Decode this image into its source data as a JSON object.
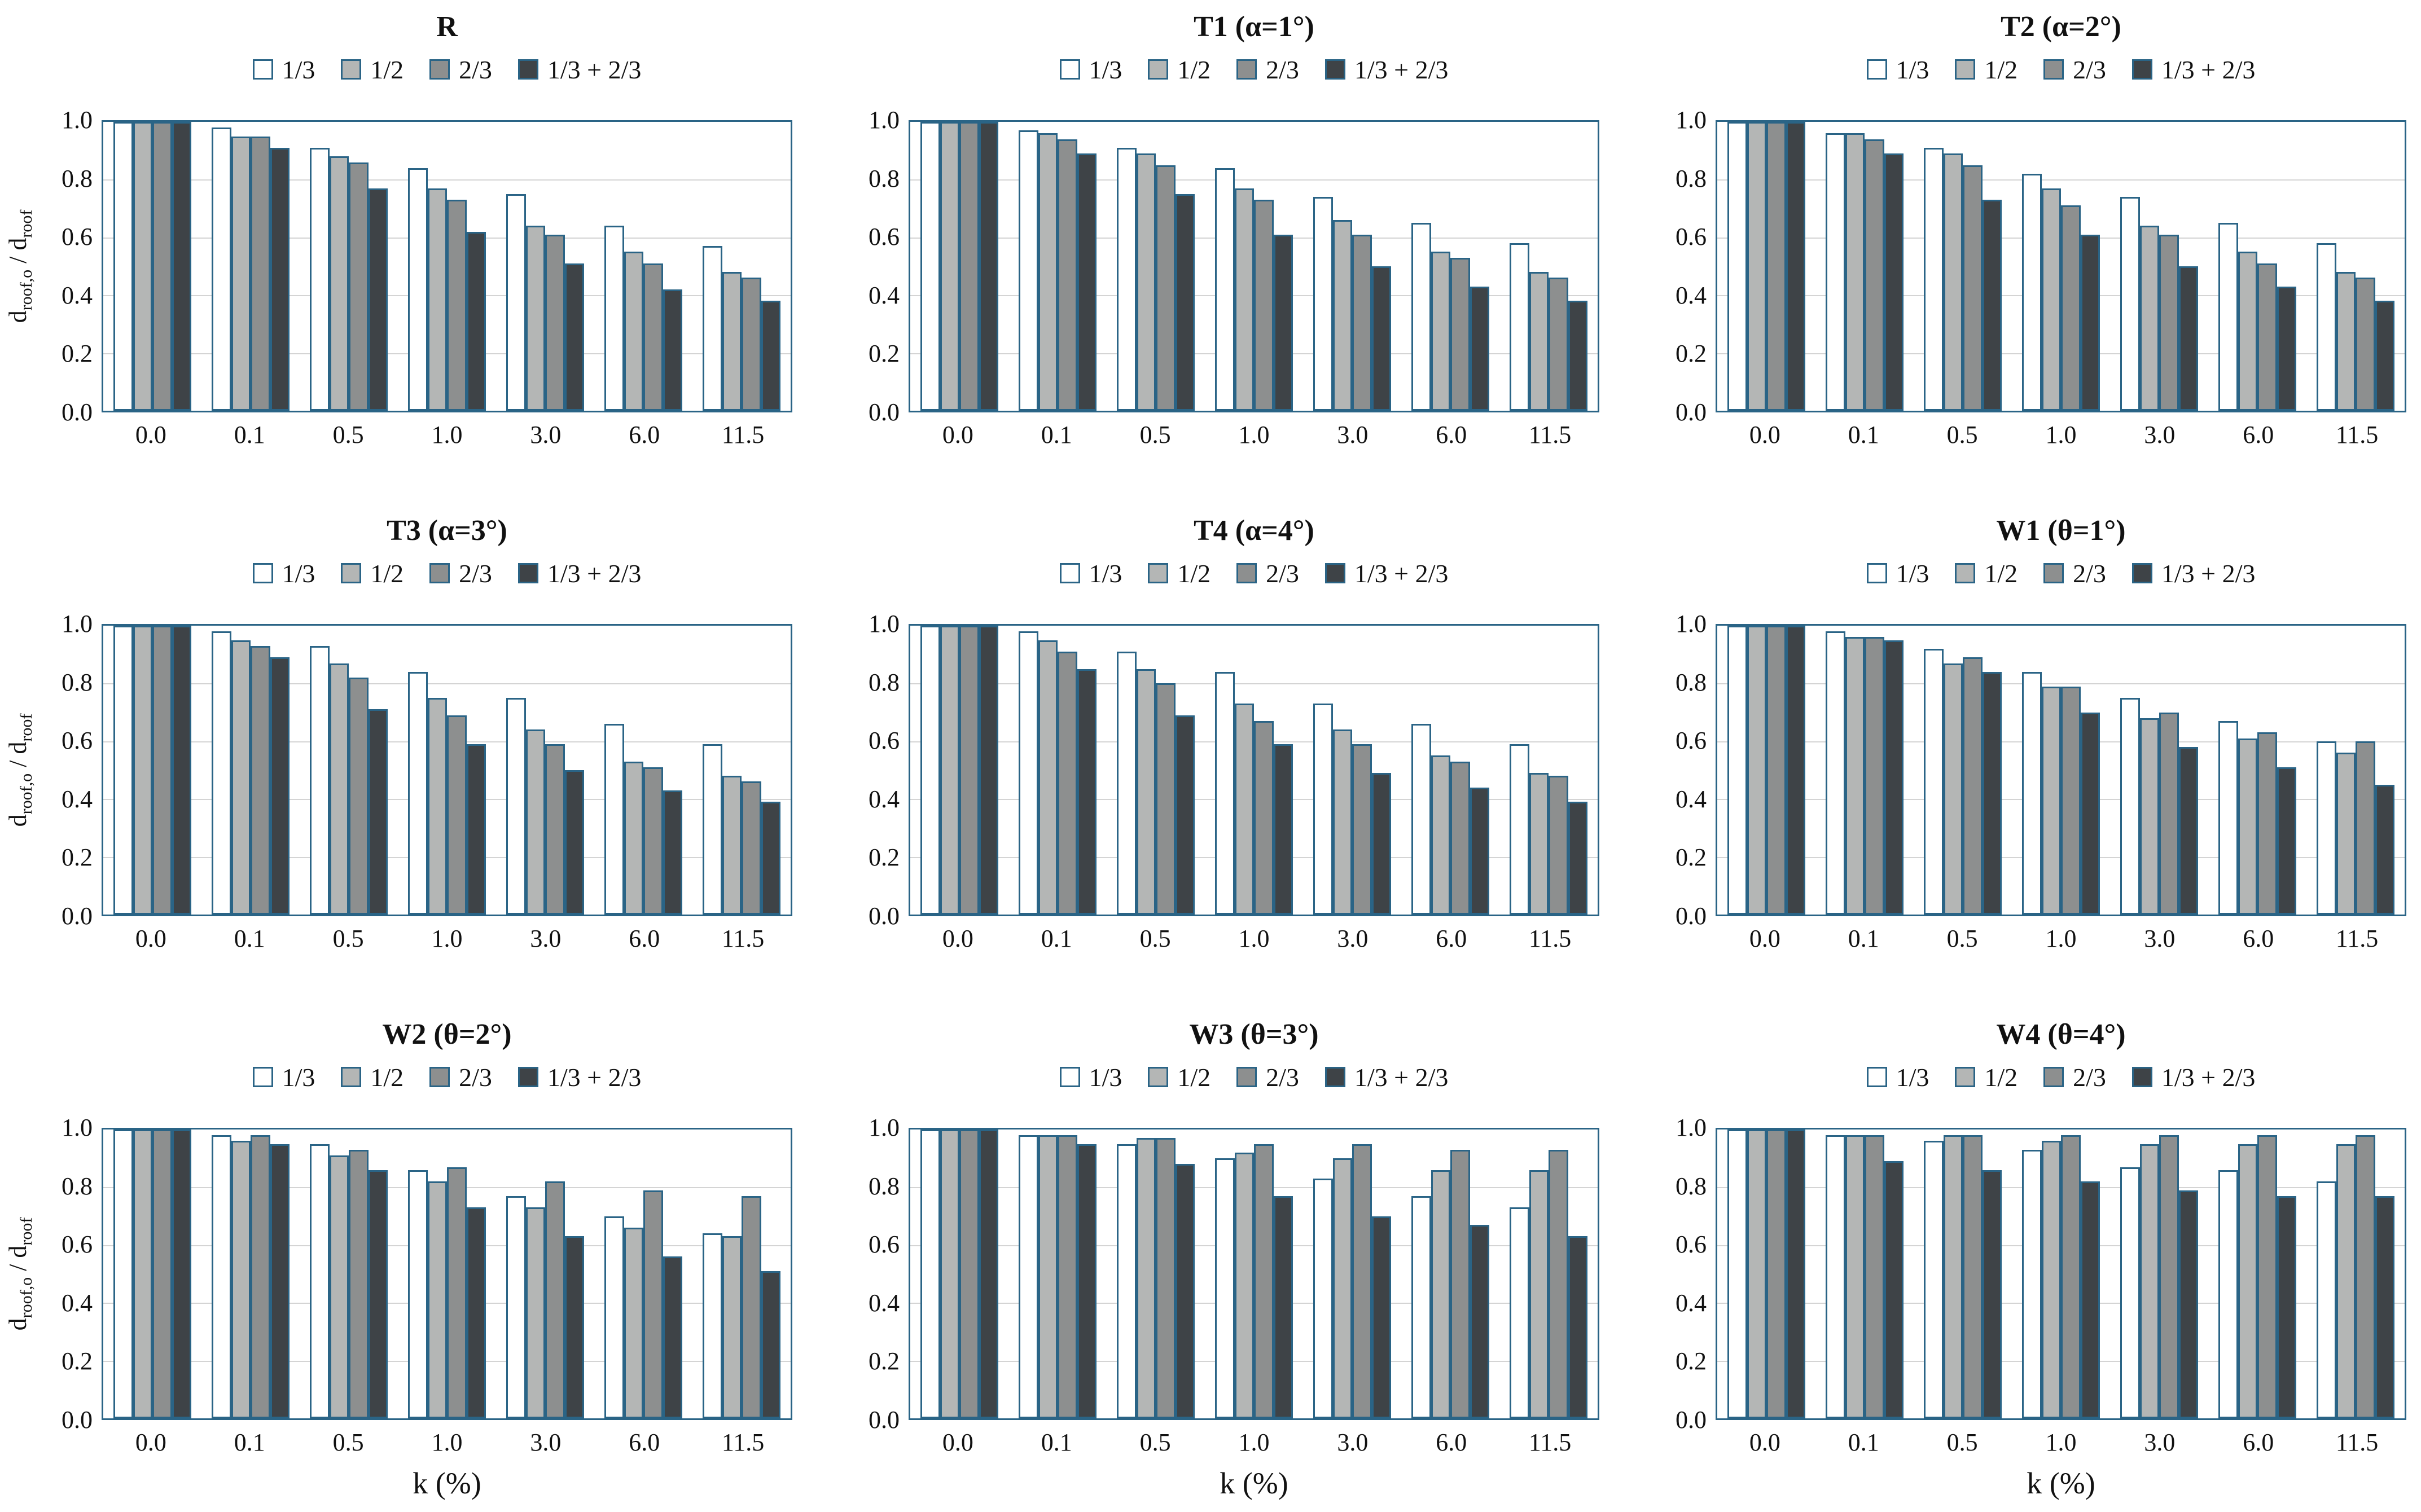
{
  "figure": {
    "ylabel": {
      "base1": "d",
      "sub1": "roof,o",
      "base2": " / d",
      "sub2": "roof"
    },
    "xlabel": "k (%)",
    "yticks": [
      "1.0",
      "0.8",
      "0.6",
      "0.4",
      "0.2",
      "0.0"
    ],
    "legend": [
      "1/3",
      "1/2",
      "2/3",
      "1/3 + 2/3"
    ],
    "colors": {
      "series": [
        "#ffffff",
        "#b4b6b5",
        "#8d8f8f",
        "#3e4347"
      ],
      "border": "#2a6486",
      "gridline": "#d4d4d4"
    }
  },
  "chart_data": [
    {
      "type": "bar",
      "id": "R",
      "title": "R",
      "categories": [
        "0.0",
        "0.1",
        "0.5",
        "1.0",
        "3.0",
        "6.0",
        "11.5"
      ],
      "ylim": [
        0,
        1
      ],
      "show_ylabel": true,
      "show_xlabel": false,
      "series": [
        {
          "name": "1/3",
          "values": [
            1.0,
            0.98,
            0.91,
            0.84,
            0.75,
            0.64,
            0.57
          ]
        },
        {
          "name": "1/2",
          "values": [
            1.0,
            0.95,
            0.88,
            0.77,
            0.64,
            0.55,
            0.48
          ]
        },
        {
          "name": "2/3",
          "values": [
            1.0,
            0.95,
            0.86,
            0.73,
            0.61,
            0.51,
            0.46
          ]
        },
        {
          "name": "1/3 + 2/3",
          "values": [
            1.0,
            0.91,
            0.77,
            0.62,
            0.51,
            0.42,
            0.38
          ]
        }
      ]
    },
    {
      "type": "bar",
      "id": "T1",
      "title": "T1 (α=1°)",
      "categories": [
        "0.0",
        "0.1",
        "0.5",
        "1.0",
        "3.0",
        "6.0",
        "11.5"
      ],
      "ylim": [
        0,
        1
      ],
      "show_ylabel": false,
      "show_xlabel": false,
      "series": [
        {
          "name": "1/3",
          "values": [
            1.0,
            0.97,
            0.91,
            0.84,
            0.74,
            0.65,
            0.58
          ]
        },
        {
          "name": "1/2",
          "values": [
            1.0,
            0.96,
            0.89,
            0.77,
            0.66,
            0.55,
            0.48
          ]
        },
        {
          "name": "2/3",
          "values": [
            1.0,
            0.94,
            0.85,
            0.73,
            0.61,
            0.53,
            0.46
          ]
        },
        {
          "name": "1/3 + 2/3",
          "values": [
            1.0,
            0.89,
            0.75,
            0.61,
            0.5,
            0.43,
            0.38
          ]
        }
      ]
    },
    {
      "type": "bar",
      "id": "T2",
      "title": "T2 (α=2°)",
      "categories": [
        "0.0",
        "0.1",
        "0.5",
        "1.0",
        "3.0",
        "6.0",
        "11.5"
      ],
      "ylim": [
        0,
        1
      ],
      "show_ylabel": false,
      "show_xlabel": false,
      "series": [
        {
          "name": "1/3",
          "values": [
            1.0,
            0.96,
            0.91,
            0.82,
            0.74,
            0.65,
            0.58
          ]
        },
        {
          "name": "1/2",
          "values": [
            1.0,
            0.96,
            0.89,
            0.77,
            0.64,
            0.55,
            0.48
          ]
        },
        {
          "name": "2/3",
          "values": [
            1.0,
            0.94,
            0.85,
            0.71,
            0.61,
            0.51,
            0.46
          ]
        },
        {
          "name": "1/3 + 2/3",
          "values": [
            1.0,
            0.89,
            0.73,
            0.61,
            0.5,
            0.43,
            0.38
          ]
        }
      ]
    },
    {
      "type": "bar",
      "id": "T3",
      "title": "T3 (α=3°)",
      "categories": [
        "0.0",
        "0.1",
        "0.5",
        "1.0",
        "3.0",
        "6.0",
        "11.5"
      ],
      "ylim": [
        0,
        1
      ],
      "show_ylabel": true,
      "show_xlabel": false,
      "series": [
        {
          "name": "1/3",
          "values": [
            1.0,
            0.98,
            0.93,
            0.84,
            0.75,
            0.66,
            0.59
          ]
        },
        {
          "name": "1/2",
          "values": [
            1.0,
            0.95,
            0.87,
            0.75,
            0.64,
            0.53,
            0.48
          ]
        },
        {
          "name": "2/3",
          "values": [
            1.0,
            0.93,
            0.82,
            0.69,
            0.59,
            0.51,
            0.46
          ]
        },
        {
          "name": "1/3 + 2/3",
          "values": [
            1.0,
            0.89,
            0.71,
            0.59,
            0.5,
            0.43,
            0.39
          ]
        }
      ]
    },
    {
      "type": "bar",
      "id": "T4",
      "title": "T4 (α=4°)",
      "categories": [
        "0.0",
        "0.1",
        "0.5",
        "1.0",
        "3.0",
        "6.0",
        "11.5"
      ],
      "ylim": [
        0,
        1
      ],
      "show_ylabel": false,
      "show_xlabel": false,
      "series": [
        {
          "name": "1/3",
          "values": [
            1.0,
            0.98,
            0.91,
            0.84,
            0.73,
            0.66,
            0.59
          ]
        },
        {
          "name": "1/2",
          "values": [
            1.0,
            0.95,
            0.85,
            0.73,
            0.64,
            0.55,
            0.49
          ]
        },
        {
          "name": "2/3",
          "values": [
            1.0,
            0.91,
            0.8,
            0.67,
            0.59,
            0.53,
            0.48
          ]
        },
        {
          "name": "1/3 + 2/3",
          "values": [
            1.0,
            0.85,
            0.69,
            0.59,
            0.49,
            0.44,
            0.39
          ]
        }
      ]
    },
    {
      "type": "bar",
      "id": "W1",
      "title": "W1 (θ=1°)",
      "categories": [
        "0.0",
        "0.1",
        "0.5",
        "1.0",
        "3.0",
        "6.0",
        "11.5"
      ],
      "ylim": [
        0,
        1
      ],
      "show_ylabel": false,
      "show_xlabel": false,
      "series": [
        {
          "name": "1/3",
          "values": [
            1.0,
            0.98,
            0.92,
            0.84,
            0.75,
            0.67,
            0.6
          ]
        },
        {
          "name": "1/2",
          "values": [
            1.0,
            0.96,
            0.87,
            0.79,
            0.68,
            0.61,
            0.56
          ]
        },
        {
          "name": "2/3",
          "values": [
            1.0,
            0.96,
            0.89,
            0.79,
            0.7,
            0.63,
            0.6
          ]
        },
        {
          "name": "1/3 + 2/3",
          "values": [
            1.0,
            0.95,
            0.84,
            0.7,
            0.58,
            0.51,
            0.45
          ]
        }
      ]
    },
    {
      "type": "bar",
      "id": "W2",
      "title": "W2 (θ=2°)",
      "categories": [
        "0.0",
        "0.1",
        "0.5",
        "1.0",
        "3.0",
        "6.0",
        "11.5"
      ],
      "ylim": [
        0,
        1
      ],
      "show_ylabel": true,
      "show_xlabel": true,
      "series": [
        {
          "name": "1/3",
          "values": [
            1.0,
            0.98,
            0.95,
            0.86,
            0.77,
            0.7,
            0.64
          ]
        },
        {
          "name": "1/2",
          "values": [
            1.0,
            0.96,
            0.91,
            0.82,
            0.73,
            0.66,
            0.63
          ]
        },
        {
          "name": "2/3",
          "values": [
            1.0,
            0.98,
            0.93,
            0.87,
            0.82,
            0.79,
            0.77
          ]
        },
        {
          "name": "1/3 + 2/3",
          "values": [
            1.0,
            0.95,
            0.86,
            0.73,
            0.63,
            0.56,
            0.51
          ]
        }
      ]
    },
    {
      "type": "bar",
      "id": "W3",
      "title": "W3 (θ=3°)",
      "categories": [
        "0.0",
        "0.1",
        "0.5",
        "1.0",
        "3.0",
        "6.0",
        "11.5"
      ],
      "ylim": [
        0,
        1
      ],
      "show_ylabel": false,
      "show_xlabel": true,
      "series": [
        {
          "name": "1/3",
          "values": [
            1.0,
            0.98,
            0.95,
            0.9,
            0.83,
            0.77,
            0.73
          ]
        },
        {
          "name": "1/2",
          "values": [
            1.0,
            0.98,
            0.97,
            0.92,
            0.9,
            0.86,
            0.86
          ]
        },
        {
          "name": "2/3",
          "values": [
            1.0,
            0.98,
            0.97,
            0.95,
            0.95,
            0.93,
            0.93
          ]
        },
        {
          "name": "1/3 + 2/3",
          "values": [
            1.0,
            0.95,
            0.88,
            0.77,
            0.7,
            0.67,
            0.63
          ]
        }
      ]
    },
    {
      "type": "bar",
      "id": "W4",
      "title": "W4 (θ=4°)",
      "categories": [
        "0.0",
        "0.1",
        "0.5",
        "1.0",
        "3.0",
        "6.0",
        "11.5"
      ],
      "ylim": [
        0,
        1
      ],
      "show_ylabel": false,
      "show_xlabel": true,
      "series": [
        {
          "name": "1/3",
          "values": [
            1.0,
            0.98,
            0.96,
            0.93,
            0.87,
            0.86,
            0.82
          ]
        },
        {
          "name": "1/2",
          "values": [
            1.0,
            0.98,
            0.98,
            0.96,
            0.95,
            0.95,
            0.95
          ]
        },
        {
          "name": "2/3",
          "values": [
            1.0,
            0.98,
            0.98,
            0.98,
            0.98,
            0.98,
            0.98
          ]
        },
        {
          "name": "1/3 + 2/3",
          "values": [
            1.0,
            0.89,
            0.86,
            0.82,
            0.79,
            0.77,
            0.77
          ]
        }
      ]
    }
  ]
}
